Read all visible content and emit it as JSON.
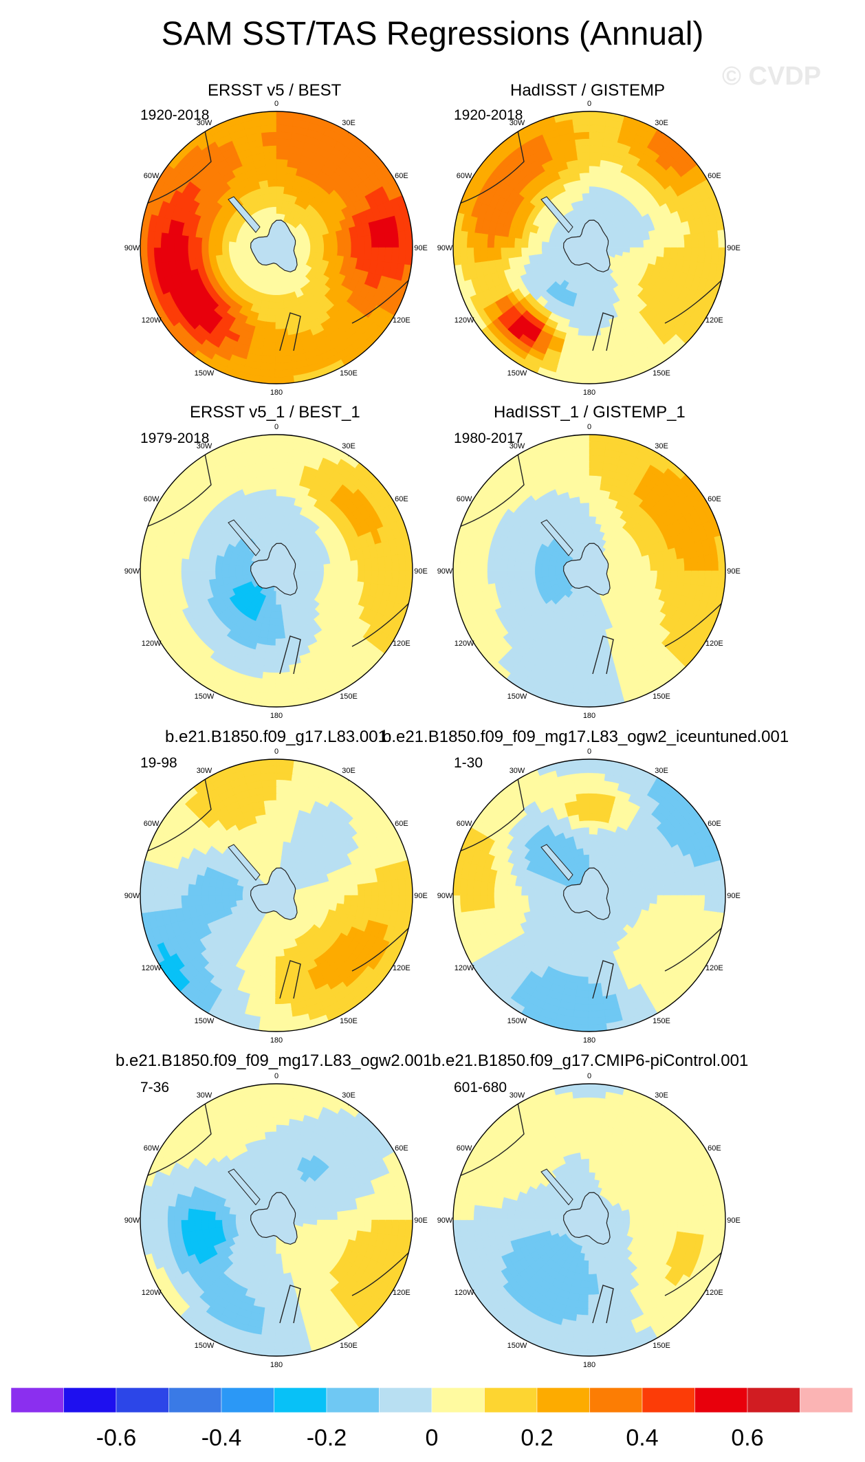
{
  "title": "SAM SST/TAS Regressions (Annual)",
  "watermark": "© CVDP",
  "lon_labels": [
    "0",
    "30E",
    "60E",
    "90E",
    "120E",
    "150E",
    "180",
    "150W",
    "120W",
    "90W",
    "60W",
    "30W"
  ],
  "panels": [
    {
      "title": "ERSST v5 / BEST",
      "period": "1920-2018"
    },
    {
      "title": "HadISST / GISTEMP",
      "period": "1920-2018"
    },
    {
      "title": "ERSST v5_1 / BEST_1",
      "period": "1979-2018"
    },
    {
      "title": "HadISST_1 / GISTEMP_1",
      "period": "1980-2017"
    },
    {
      "title": "b.e21.B1850.f09_g17.L83.001",
      "period": "19-98"
    },
    {
      "title": "b.e21.B1850.f09_f09_mg17.L83_ogw2_iceuntuned.001",
      "period": "1-30"
    },
    {
      "title": "b.e21.B1850.f09_f09_mg17.L83_ogw2.001",
      "period": "7-36"
    },
    {
      "title": "b.e21.B1850.f09_g17.CMIP6-piControl.001",
      "period": "601-680"
    }
  ],
  "chart_data": {
    "type": "heatmap",
    "projection": "south polar stereographic",
    "variable": "SST/TAS regression onto SAM index (Annual)",
    "colorbar": {
      "levels": [
        -0.7,
        -0.6,
        -0.5,
        -0.4,
        -0.3,
        -0.2,
        -0.1,
        0,
        0.1,
        0.2,
        0.3,
        0.4,
        0.5,
        0.6,
        0.7
      ],
      "tick_labels": [
        "-0.6",
        "-0.4",
        "-0.2",
        "0",
        "0.2",
        "0.4",
        "0.6"
      ],
      "tick_values": [
        -0.6,
        -0.4,
        -0.2,
        0,
        0.2,
        0.4,
        0.6
      ],
      "colors": [
        "#8b2fef",
        "#1e10ef",
        "#2c46e8",
        "#3a7ae6",
        "#2b98f6",
        "#08c1f7",
        "#6fc8f3",
        "#b8dff2",
        "#fffaa0",
        "#fdd531",
        "#fdab00",
        "#fc7d04",
        "#fc3c07",
        "#e8000c",
        "#d11c22",
        "#fbb4b4"
      ]
    },
    "panel_patterns": [
      {
        "base": 0.15,
        "blobs": [
          [
            0.35,
            -2.4,
            0.7,
            0.18,
            0.35
          ],
          [
            0.4,
            -1.7,
            0.75,
            0.22,
            0.45
          ],
          [
            0.25,
            -0.8,
            0.65,
            0.3,
            0.5
          ],
          [
            0.3,
            0.5,
            0.7,
            0.4,
            0.5
          ],
          [
            0.3,
            1.8,
            0.7,
            0.3,
            0.45
          ],
          [
            0.2,
            1.4,
            0.85,
            0.3,
            0.25
          ],
          [
            -0.2,
            0,
            0.1,
            0.5,
            3
          ],
          [
            0.1,
            3.0,
            0.7,
            0.3,
            0.4
          ]
        ]
      },
      {
        "base": 0.05,
        "blobs": [
          [
            0.6,
            -2.45,
            0.75,
            0.12,
            0.25
          ],
          [
            0.35,
            -1.3,
            0.7,
            0.2,
            0.35
          ],
          [
            0.3,
            -0.5,
            0.75,
            0.25,
            0.4
          ],
          [
            0.3,
            0.7,
            0.9,
            0.25,
            0.35
          ],
          [
            -0.12,
            0,
            0.35,
            0.3,
            3
          ],
          [
            -0.1,
            -2.6,
            0.45,
            0.15,
            0.4
          ],
          [
            0.2,
            2.0,
            0.65,
            0.25,
            0.4
          ]
        ]
      },
      {
        "base": 0.05,
        "blobs": [
          [
            -0.15,
            -0.6,
            0.3,
            0.25,
            2
          ],
          [
            -0.17,
            -2.4,
            0.25,
            0.2,
            0.6
          ],
          [
            0.12,
            1.2,
            0.85,
            0.3,
            0.9
          ],
          [
            -0.08,
            0.4,
            0.9,
            0.25,
            0.4
          ],
          [
            0.15,
            0.75,
            0.7,
            0.15,
            0.4
          ],
          [
            -0.08,
            -3.0,
            0.55,
            0.2,
            0.6
          ]
        ]
      },
      {
        "base": 0.05,
        "blobs": [
          [
            -0.15,
            -0.8,
            0.3,
            0.3,
            2
          ],
          [
            -0.12,
            -3.0,
            0.85,
            0.2,
            0.4
          ],
          [
            0.15,
            1.3,
            0.8,
            0.3,
            0.8
          ],
          [
            0.12,
            0.7,
            0.6,
            0.3,
            0.6
          ],
          [
            -0.08,
            -1.9,
            0.2,
            0.15,
            0.5
          ]
        ]
      },
      {
        "base": 0.0,
        "blobs": [
          [
            -0.22,
            -2.2,
            0.95,
            0.2,
            0.4
          ],
          [
            -0.2,
            -1.4,
            0.45,
            0.2,
            0.5
          ],
          [
            0.2,
            1.9,
            0.8,
            0.3,
            0.7
          ],
          [
            0.12,
            2.7,
            0.6,
            0.2,
            0.5
          ],
          [
            0.12,
            -0.2,
            0.9,
            0.3,
            0.6
          ],
          [
            -0.12,
            0.7,
            0.6,
            0.25,
            0.6
          ],
          [
            0.1,
            -0.6,
            0.55,
            0.25,
            0.6
          ]
        ]
      },
      {
        "base": 0.0,
        "blobs": [
          [
            0.2,
            -1.3,
            0.75,
            0.3,
            0.5
          ],
          [
            -0.18,
            -0.9,
            0.5,
            0.2,
            0.4
          ],
          [
            0.25,
            0.05,
            0.65,
            0.12,
            0.3
          ],
          [
            -0.2,
            -3.0,
            0.85,
            0.2,
            0.4
          ],
          [
            -0.15,
            1.0,
            0.95,
            0.2,
            0.4
          ],
          [
            0.12,
            2.2,
            0.7,
            0.3,
            0.6
          ],
          [
            -0.1,
            0,
            0.1,
            0.5,
            3
          ]
        ]
      },
      {
        "base": 0.0,
        "blobs": [
          [
            -0.28,
            -1.7,
            0.55,
            0.18,
            0.35
          ],
          [
            -0.15,
            -2.6,
            0.75,
            0.2,
            0.5
          ],
          [
            0.18,
            2.0,
            0.8,
            0.3,
            0.5
          ],
          [
            -0.12,
            0.5,
            0.5,
            0.3,
            0.8
          ],
          [
            0.12,
            -0.2,
            0.9,
            0.3,
            0.5
          ],
          [
            0.1,
            -2.2,
            0.95,
            0.2,
            0.3
          ]
        ]
      },
      {
        "base": -0.03,
        "blobs": [
          [
            0.15,
            2.0,
            0.75,
            0.25,
            0.5
          ],
          [
            0.1,
            -1.0,
            0.8,
            0.3,
            0.5
          ],
          [
            -0.12,
            -2.5,
            0.5,
            0.3,
            0.8
          ],
          [
            0.08,
            0.7,
            0.6,
            0.3,
            0.5
          ]
        ]
      }
    ]
  }
}
